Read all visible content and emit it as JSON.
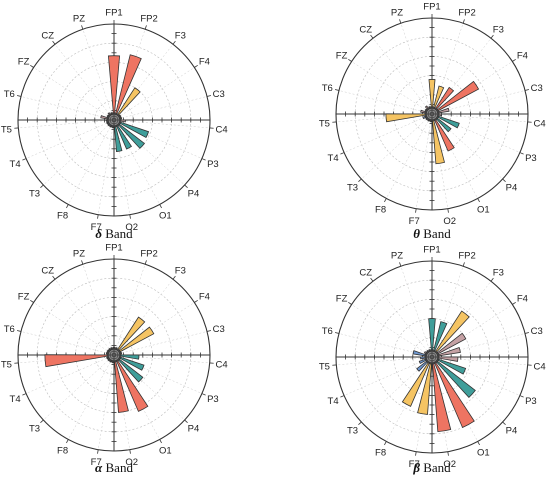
{
  "colors": {
    "red": "#ee7462",
    "yellow": "#f5c463",
    "teal": "#3f9e9a",
    "blue": "#6f98d0",
    "mauve": "#c5a1a4",
    "stroke": "#333333"
  },
  "chart_data": [
    {
      "type": "polar-bar",
      "title_symbol": "δ",
      "title_text": " Band",
      "electrodes": [
        "FP1",
        "FP2",
        "F3",
        "F4",
        "C3",
        "C4",
        "P3",
        "P4",
        "O1",
        "O2",
        "F7",
        "F8",
        "T3",
        "T4",
        "T5",
        "T6",
        "FZ",
        "CZ",
        "PZ"
      ],
      "rmax": 1.0,
      "grid": true,
      "values": [
        0.67,
        0.7,
        0.4,
        0.0,
        0.0,
        0.12,
        0.38,
        0.4,
        0.33,
        0.33,
        0.04,
        0.05,
        0.05,
        0.05,
        0.08,
        0.14,
        0.06,
        0.09,
        0.03
      ],
      "color_keys": [
        "red",
        "red",
        "yellow",
        "yellow",
        "yellow",
        "mauve",
        "teal",
        "teal",
        "teal",
        "teal",
        "mauve",
        "blue",
        "blue",
        "blue",
        "mauve",
        "mauve",
        "blue",
        "mauve",
        "mauve"
      ]
    },
    {
      "type": "polar-bar",
      "title_symbol": "θ",
      "title_text": " Band",
      "electrodes": [
        "FP1",
        "FP2",
        "F3",
        "F4",
        "C3",
        "C4",
        "P3",
        "P4",
        "O1",
        "O2",
        "F7",
        "F8",
        "T3",
        "T4",
        "T5",
        "T6",
        "FZ",
        "CZ",
        "PZ"
      ],
      "rmax": 1.0,
      "grid": true,
      "values": [
        0.36,
        0.3,
        0.33,
        0.55,
        0.18,
        0.1,
        0.3,
        0.25,
        0.42,
        0.52,
        0.08,
        0.05,
        0.08,
        0.1,
        0.48,
        0.12,
        0.08,
        0.1,
        0.06
      ],
      "color_keys": [
        "yellow",
        "yellow",
        "red",
        "red",
        "mauve",
        "mauve",
        "teal",
        "teal",
        "red",
        "yellow",
        "mauve",
        "blue",
        "blue",
        "blue",
        "yellow",
        "mauve",
        "mauve",
        "mauve",
        "mauve"
      ]
    },
    {
      "type": "polar-bar",
      "title_symbol": "α",
      "title_text": " Band",
      "electrodes": [
        "FP1",
        "FP2",
        "F3",
        "F4",
        "C3",
        "C4",
        "P3",
        "P4",
        "O1",
        "O2",
        "F7",
        "F8",
        "T3",
        "T4",
        "T5",
        "T6",
        "FZ",
        "CZ",
        "PZ"
      ],
      "rmax": 1.0,
      "grid": true,
      "values": [
        0.03,
        0.04,
        0.47,
        0.47,
        0.0,
        0.26,
        0.33,
        0.38,
        0.64,
        0.6,
        0.05,
        0.05,
        0.05,
        0.05,
        0.72,
        0.06,
        0.06,
        0.07,
        0.03
      ],
      "color_keys": [
        "mauve",
        "mauve",
        "yellow",
        "yellow",
        "yellow",
        "teal",
        "teal",
        "teal",
        "red",
        "red",
        "mauve",
        "blue",
        "blue",
        "blue",
        "red",
        "mauve",
        "mauve",
        "mauve",
        "mauve"
      ]
    },
    {
      "type": "polar-bar",
      "title_symbol": "β",
      "title_text": " Band",
      "electrodes": [
        "FP1",
        "FP2",
        "F3",
        "F4",
        "C3",
        "C4",
        "P3",
        "P4",
        "O1",
        "O2",
        "F7",
        "F8",
        "T3",
        "T4",
        "T5",
        "T6",
        "FZ",
        "CZ",
        "PZ"
      ],
      "rmax": 1.0,
      "grid": true,
      "values": [
        0.4,
        0.38,
        0.57,
        0.4,
        0.3,
        0.27,
        0.37,
        0.57,
        0.8,
        0.78,
        0.6,
        0.56,
        0.2,
        0.14,
        0.12,
        0.2,
        0.09,
        0.06,
        0.04
      ],
      "color_keys": [
        "teal",
        "teal",
        "yellow",
        "mauve",
        "mauve",
        "mauve",
        "teal",
        "teal",
        "red",
        "red",
        "yellow",
        "yellow",
        "blue",
        "blue",
        "blue",
        "blue",
        "mauve",
        "mauve",
        "mauve"
      ]
    }
  ]
}
